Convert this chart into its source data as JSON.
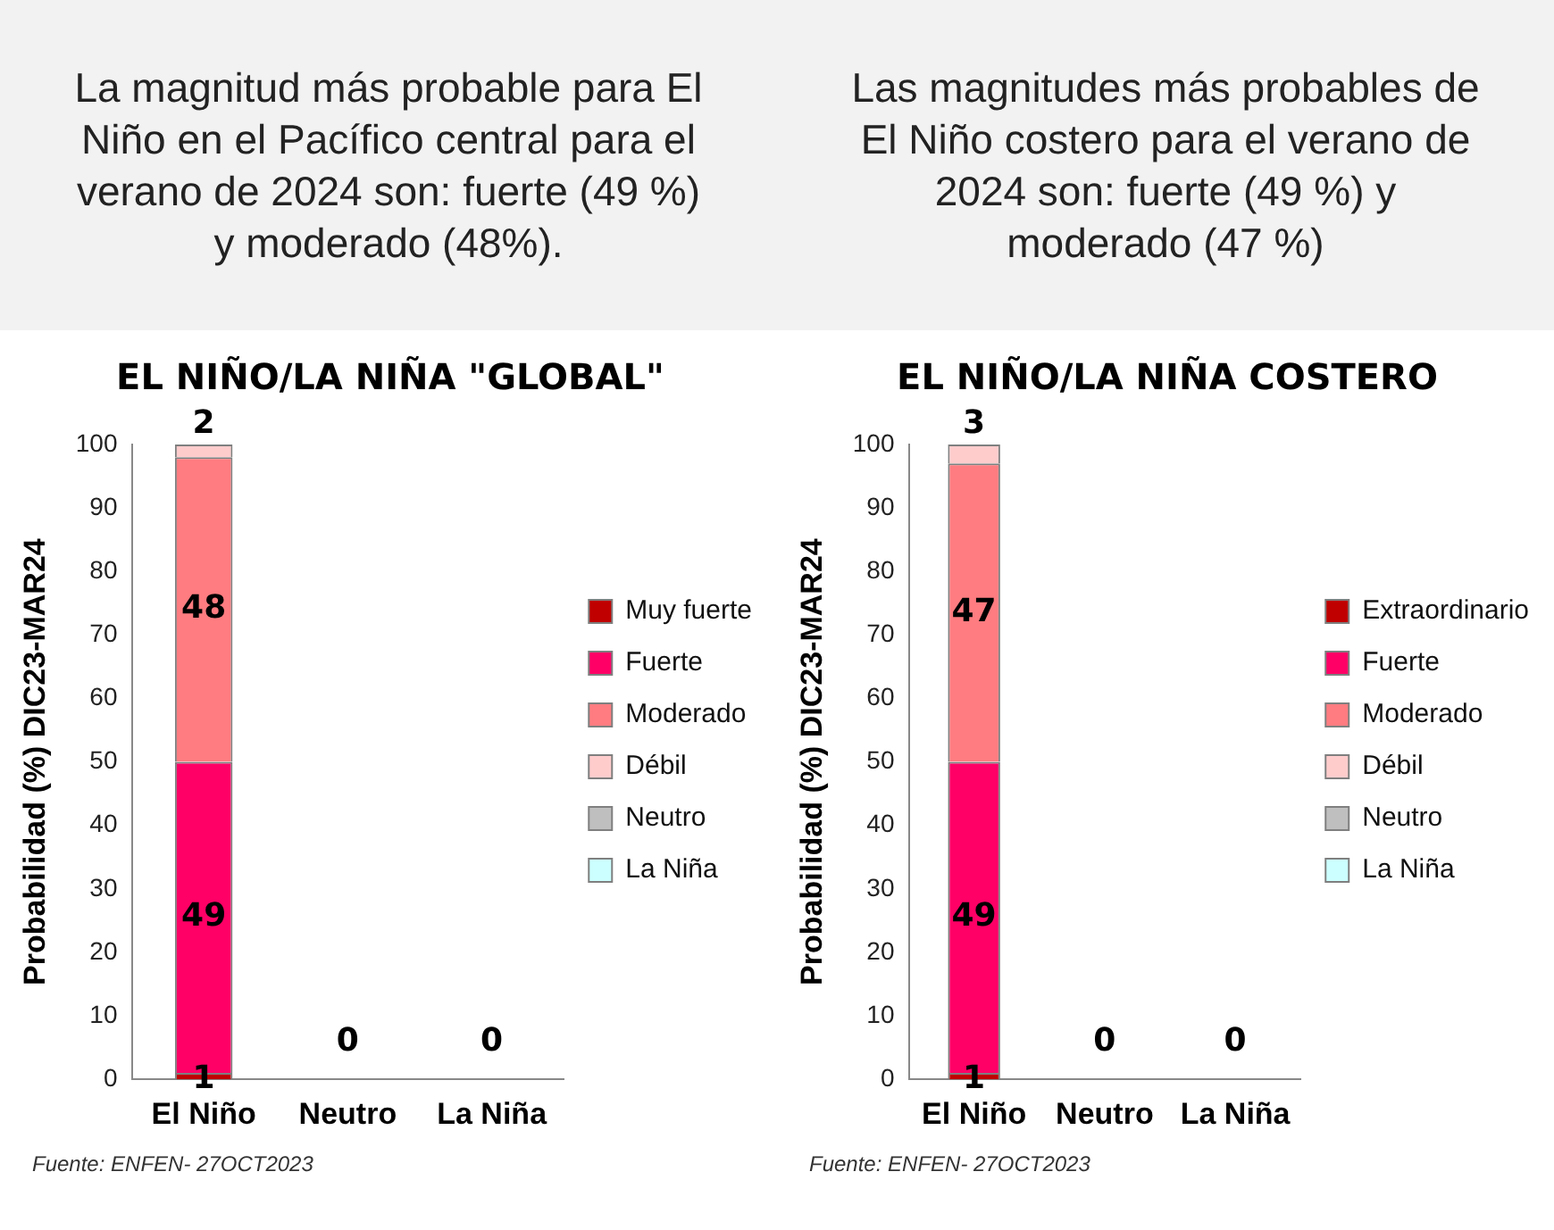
{
  "chart_data": [
    {
      "type": "bar",
      "subtitle": "La magnitud más probable para El Niño en el Pacífico central para el verano de 2024 son: fuerte (49 %) y moderado (48%).",
      "title": "EL NIÑO/LA NIÑA \"GLOBAL\"",
      "ylabel": "Probabilidad (%) DIC23-MAR24",
      "categories": [
        "El Niño",
        "Neutro",
        "La Niña"
      ],
      "stacked": true,
      "ylim": [
        0,
        100
      ],
      "yticks": [
        0,
        10,
        20,
        30,
        40,
        50,
        60,
        70,
        80,
        90,
        100
      ],
      "grid": false,
      "legend": "right",
      "annotations": [
        "Fuente: ENFEN- 27OCT2023"
      ],
      "series": [
        {
          "name": "Muy fuerte",
          "color": "#c00000",
          "values": [
            1,
            0,
            0
          ],
          "value_labels": [
            "1",
            null,
            null
          ]
        },
        {
          "name": "Fuerte",
          "color": "#ff0066",
          "values": [
            49,
            0,
            0
          ],
          "value_labels": [
            "49",
            null,
            null
          ]
        },
        {
          "name": "Moderado",
          "color": "#ff7c80",
          "values": [
            48,
            0,
            0
          ],
          "value_labels": [
            "48",
            null,
            null
          ]
        },
        {
          "name": "Débil",
          "color": "#ffcccc",
          "values": [
            2,
            0,
            0
          ],
          "value_labels": [
            "2",
            null,
            null
          ]
        },
        {
          "name": "Neutro",
          "color": "#bfbfbf",
          "values": [
            0,
            0,
            0
          ],
          "value_labels": [
            null,
            "0",
            null
          ]
        },
        {
          "name": "La Niña",
          "color": "#ccffff",
          "values": [
            0,
            0,
            0
          ],
          "value_labels": [
            null,
            null,
            "0"
          ]
        }
      ]
    },
    {
      "type": "bar",
      "subtitle": "Las magnitudes más probables de El Niño costero para el verano de 2024 son: fuerte (49 %) y moderado (47 %)",
      "title": "EL NIÑO/LA NIÑA COSTERO",
      "ylabel": "Probabilidad (%) DIC23-MAR24",
      "categories": [
        "El Niño",
        "Neutro",
        "La Niña"
      ],
      "stacked": true,
      "ylim": [
        0,
        100
      ],
      "yticks": [
        0,
        10,
        20,
        30,
        40,
        50,
        60,
        70,
        80,
        90,
        100
      ],
      "grid": false,
      "legend": "right",
      "annotations": [
        "Fuente: ENFEN- 27OCT2023"
      ],
      "series": [
        {
          "name": "Extraordinario",
          "color": "#c00000",
          "values": [
            1,
            0,
            0
          ],
          "value_labels": [
            "1",
            null,
            null
          ]
        },
        {
          "name": "Fuerte",
          "color": "#ff0066",
          "values": [
            49,
            0,
            0
          ],
          "value_labels": [
            "49",
            null,
            null
          ]
        },
        {
          "name": "Moderado",
          "color": "#ff7c80",
          "values": [
            47,
            0,
            0
          ],
          "value_labels": [
            "47",
            null,
            null
          ]
        },
        {
          "name": "Débil",
          "color": "#ffcccc",
          "values": [
            3,
            0,
            0
          ],
          "value_labels": [
            "3",
            null,
            null
          ]
        },
        {
          "name": "Neutro",
          "color": "#bfbfbf",
          "values": [
            0,
            0,
            0
          ],
          "value_labels": [
            null,
            "0",
            null
          ]
        },
        {
          "name": "La Niña",
          "color": "#ccffff",
          "values": [
            0,
            0,
            0
          ],
          "value_labels": [
            null,
            null,
            "0"
          ]
        }
      ]
    }
  ]
}
